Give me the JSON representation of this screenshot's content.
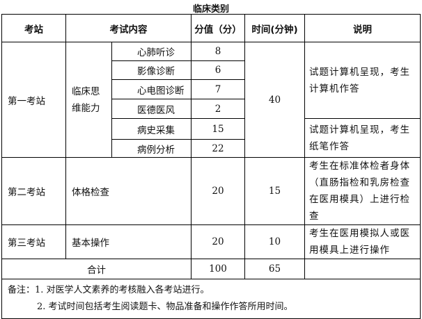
{
  "title": "临床类别",
  "headers": {
    "station": "考站",
    "content": "考试内容",
    "score": "分值（分）",
    "time": "时间(分钟)",
    "desc": "说明"
  },
  "station1": {
    "name": "第一考站",
    "category": "临床思维能力",
    "items": [
      {
        "name": "心肺听诊",
        "score": "8"
      },
      {
        "name": "影像诊断",
        "score": "6"
      },
      {
        "name": "心电图诊断",
        "score": "7"
      },
      {
        "name": "医德医风",
        "score": "2"
      },
      {
        "name": "病史采集",
        "score": "15"
      },
      {
        "name": "病例分析",
        "score": "22"
      }
    ],
    "time": "40",
    "desc1": "试题计算机呈现，考生计算机作答",
    "desc2": "试题计算机呈现，考生纸笔作答"
  },
  "station2": {
    "name": "第二考站",
    "content": "体格检查",
    "score": "20",
    "time": "15",
    "desc": "考生在标准体检者身体（直肠指检和乳房检查在医用模具）上进行检查"
  },
  "station3": {
    "name": "第三考站",
    "content": "基本操作",
    "score": "20",
    "time": "10",
    "desc": "考生在医用模拟人或医用模具上进行操作"
  },
  "total": {
    "label": "合计",
    "score": "100",
    "time": "65"
  },
  "notes": {
    "label": "备注：",
    "note1": "1. 对医学人文素养的考核融入各考站进行。",
    "note2": "2. 考试时间包括考生阅读题卡、物品准备和操作作答所用时间。"
  }
}
